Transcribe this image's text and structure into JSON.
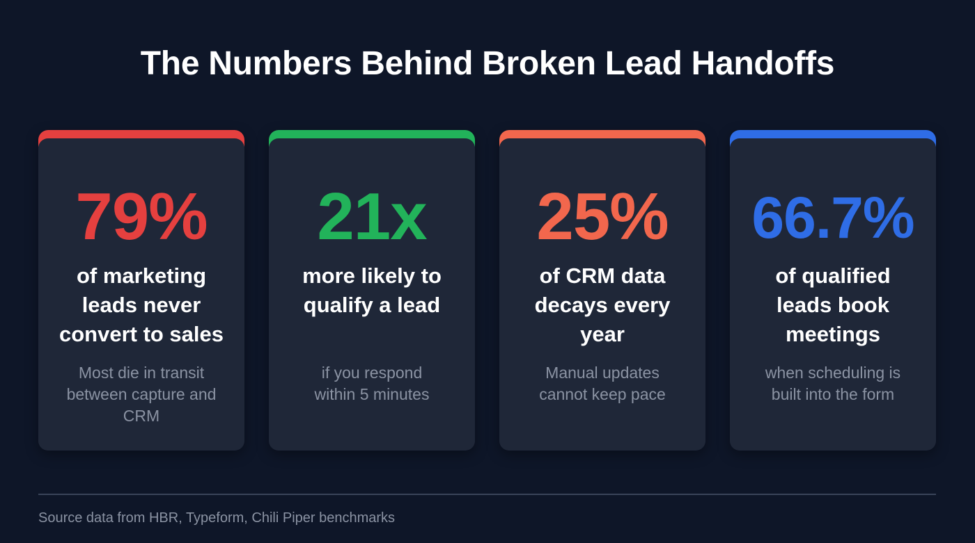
{
  "title": "The Numbers Behind Broken Lead Handoffs",
  "cards": [
    {
      "stat": "79%",
      "headline": "of marketing leads never convert to sales",
      "sub": "Most die in transit between capture and CRM",
      "color": "#e5403f"
    },
    {
      "stat": "21x",
      "headline": "more likely to qualify a lead",
      "sub": "if you respond within 5 minutes",
      "color": "#22b35a"
    },
    {
      "stat": "25%",
      "headline": "of CRM data decays every year",
      "sub": "Manual updates cannot keep pace",
      "color": "#f2674d"
    },
    {
      "stat": "66.7%",
      "headline": "of qualified leads book meetings",
      "sub": "when scheduling is built into the form",
      "color": "#2f6de6"
    }
  ],
  "source": "Source data from HBR, Typeform, Chili Piper benchmarks"
}
